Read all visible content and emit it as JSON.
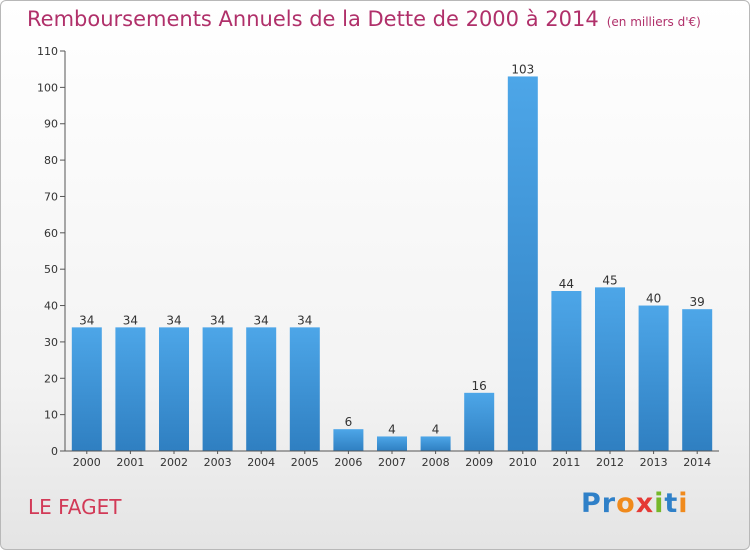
{
  "chart_data": {
    "type": "bar",
    "title": "Remboursements Annuels de la Dette de 2000 à 2014",
    "unit": "(en milliers d'€)",
    "categories": [
      "2000",
      "2001",
      "2002",
      "2003",
      "2004",
      "2005",
      "2006",
      "2007",
      "2008",
      "2009",
      "2010",
      "2011",
      "2012",
      "2013",
      "2014"
    ],
    "values": [
      34,
      34,
      34,
      34,
      34,
      34,
      6,
      4,
      4,
      16,
      103,
      44,
      45,
      40,
      39
    ],
    "ylim": [
      0,
      110
    ],
    "yticks": [
      0,
      10,
      20,
      30,
      40,
      50,
      60,
      70,
      80,
      90,
      100,
      110
    ],
    "grid": false,
    "bar_color": "#4da6e8",
    "bar_color_dark": "#2f7fc1"
  },
  "place": "LE FAGET",
  "logo": {
    "text": "Proxiti",
    "colors": [
      "#2f80c8",
      "#2f80c8",
      "#f08a1c",
      "#e53935",
      "#76b82a",
      "#2f80c8",
      "#f08a1c"
    ]
  },
  "colors": {
    "title": "#b0306a",
    "place": "#d23a57"
  }
}
